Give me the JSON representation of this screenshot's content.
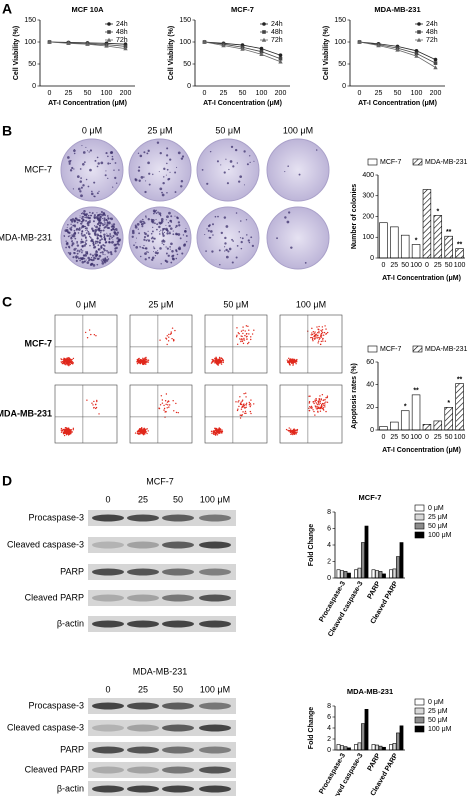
{
  "labels": {
    "panels": [
      "A",
      "B",
      "C",
      "D"
    ],
    "colony": {
      "columns": [
        "0 μM",
        "25 μM",
        "50 μM",
        "100 μM"
      ],
      "rows": [
        "MCF-7",
        "MDA-MB-231"
      ]
    },
    "flow": {
      "columns": [
        "0 μM",
        "25 μM",
        "50 μM",
        "100 μM"
      ],
      "rows": [
        "MCF-7",
        "MDA-MB-231"
      ]
    },
    "blots": [
      {
        "title": "MCF-7",
        "columns": [
          "0",
          "25",
          "50",
          "100 μM"
        ],
        "rows": [
          "Procaspase-3",
          "Cleaved caspase-3",
          "PARP",
          "Cleaved PARP",
          "β-actin"
        ]
      },
      {
        "title": "MDA-MB-231",
        "columns": [
          "0",
          "25",
          "50",
          "100 μM"
        ],
        "rows": [
          "Procaspase-3",
          "Cleaved caspase-3",
          "PARP",
          "Cleaved PARP",
          "β-actin"
        ]
      }
    ]
  },
  "chart_data": [
    {
      "type": "line",
      "title": "MCF 10A",
      "x_label": "AT-I Concentration (μM)",
      "y_label": "Cell Viability (%)",
      "categories": [
        "0",
        "25",
        "50",
        "100",
        "200"
      ],
      "ylim": [
        0,
        150
      ],
      "yticks": [
        0,
        50,
        100,
        150
      ],
      "legend": "upper right",
      "series": [
        {
          "name": "24h",
          "color": "#222222",
          "marker": "circle",
          "values": [
            100,
            99,
            98,
            97,
            95
          ]
        },
        {
          "name": "48h",
          "color": "#444444",
          "marker": "square",
          "values": [
            100,
            98,
            96,
            94,
            90
          ]
        },
        {
          "name": "72h",
          "color": "#666666",
          "marker": "triangle",
          "values": [
            100,
            97,
            95,
            91,
            85
          ]
        }
      ]
    },
    {
      "type": "line",
      "title": "MCF-7",
      "x_label": "AT-I Concentration (μM)",
      "y_label": "Cell Viability (%)",
      "categories": [
        "0",
        "25",
        "50",
        "100",
        "200"
      ],
      "ylim": [
        0,
        150
      ],
      "yticks": [
        0,
        50,
        100,
        150
      ],
      "legend": "upper right",
      "series": [
        {
          "name": "24h",
          "color": "#222222",
          "marker": "circle",
          "values": [
            100,
            97,
            93,
            85,
            70
          ]
        },
        {
          "name": "48h",
          "color": "#444444",
          "marker": "square",
          "values": [
            100,
            95,
            88,
            78,
            62
          ]
        },
        {
          "name": "72h",
          "color": "#666666",
          "marker": "triangle",
          "values": [
            100,
            92,
            84,
            72,
            55
          ]
        }
      ]
    },
    {
      "type": "line",
      "title": "MDA-MB-231",
      "x_label": "AT-I Concentration (μM)",
      "y_label": "Cell Viability (%)",
      "categories": [
        "0",
        "25",
        "50",
        "100",
        "200"
      ],
      "ylim": [
        0,
        150
      ],
      "yticks": [
        0,
        50,
        100,
        150
      ],
      "legend": "upper right",
      "series": [
        {
          "name": "24h",
          "color": "#222222",
          "marker": "circle",
          "values": [
            100,
            96,
            90,
            80,
            60
          ]
        },
        {
          "name": "48h",
          "color": "#444444",
          "marker": "square",
          "values": [
            100,
            94,
            86,
            74,
            52
          ]
        },
        {
          "name": "72h",
          "color": "#666666",
          "marker": "triangle",
          "values": [
            100,
            92,
            82,
            68,
            42
          ]
        }
      ]
    },
    {
      "type": "bar",
      "grouping": "series",
      "x_label": "AT-I Concentration (μM)",
      "y_label": "Number of colonies",
      "categories": [
        "0",
        "25",
        "50",
        "100"
      ],
      "ylim": [
        0,
        400
      ],
      "yticks": [
        0,
        100,
        200,
        300,
        400
      ],
      "legend": "top",
      "series": [
        {
          "name": "MCF-7",
          "color": "#ffffff",
          "hatch": false,
          "values": [
            170,
            150,
            110,
            65
          ],
          "significance": [
            null,
            null,
            null,
            "*"
          ]
        },
        {
          "name": "MDA-MB-231",
          "color": "#ffffff",
          "hatch": true,
          "values": [
            330,
            205,
            105,
            45
          ],
          "significance": [
            null,
            "*",
            "**",
            "**"
          ]
        }
      ]
    },
    {
      "type": "bar",
      "grouping": "series",
      "x_label": "AT-I Concentration (μM)",
      "y_label": "Apoptosis rates (%)",
      "categories": [
        "0",
        "25",
        "50",
        "100"
      ],
      "ylim": [
        0,
        60
      ],
      "yticks": [
        0,
        20,
        40,
        60
      ],
      "legend": "top",
      "series": [
        {
          "name": "MCF-7",
          "color": "#ffffff",
          "hatch": false,
          "values": [
            3,
            7,
            17,
            31
          ],
          "significance": [
            null,
            null,
            "*",
            "**"
          ]
        },
        {
          "name": "MDA-MB-231",
          "color": "#ffffff",
          "hatch": true,
          "values": [
            5,
            8,
            20,
            41
          ],
          "significance": [
            null,
            null,
            "*",
            "**"
          ]
        }
      ]
    },
    {
      "type": "bar",
      "grouping": "category",
      "title": "MCF-7",
      "y_label": "Fold Change",
      "categories": [
        "Procaspase-3",
        "Cleaved caspase-3",
        "PARP",
        "Cleaved PARP"
      ],
      "ylim": [
        0,
        8
      ],
      "yticks": [
        0,
        2,
        4,
        6,
        8
      ],
      "legend": "right",
      "series": [
        {
          "name": "0 μM",
          "color": "#ffffff",
          "values": [
            1,
            1,
            1,
            1
          ]
        },
        {
          "name": "25 μM",
          "color": "#d9d9d9",
          "values": [
            0.9,
            1.2,
            0.9,
            1.1
          ]
        },
        {
          "name": "50 μM",
          "color": "#8c8c8c",
          "values": [
            0.8,
            4.3,
            0.8,
            2.6
          ]
        },
        {
          "name": "100 μM",
          "color": "#000000",
          "values": [
            0.6,
            6.3,
            0.5,
            4.3
          ]
        }
      ]
    },
    {
      "type": "bar",
      "grouping": "category",
      "title": "MDA-MB-231",
      "y_label": "Fold Change",
      "categories": [
        "Procaspase-3",
        "Cleaved caspase-3",
        "PARP",
        "Cleaved PARP"
      ],
      "ylim": [
        0,
        8
      ],
      "yticks": [
        0,
        2,
        4,
        6,
        8
      ],
      "legend": "right",
      "series": [
        {
          "name": "0 μM",
          "color": "#ffffff",
          "values": [
            1,
            1,
            1,
            1
          ]
        },
        {
          "name": "25 μM",
          "color": "#d9d9d9",
          "values": [
            0.8,
            1.3,
            0.9,
            1.2
          ]
        },
        {
          "name": "50 μM",
          "color": "#8c8c8c",
          "values": [
            0.6,
            4.8,
            0.7,
            3.1
          ]
        },
        {
          "name": "100 μM",
          "color": "#000000",
          "values": [
            0.4,
            7.4,
            0.5,
            4.4
          ]
        }
      ]
    }
  ]
}
